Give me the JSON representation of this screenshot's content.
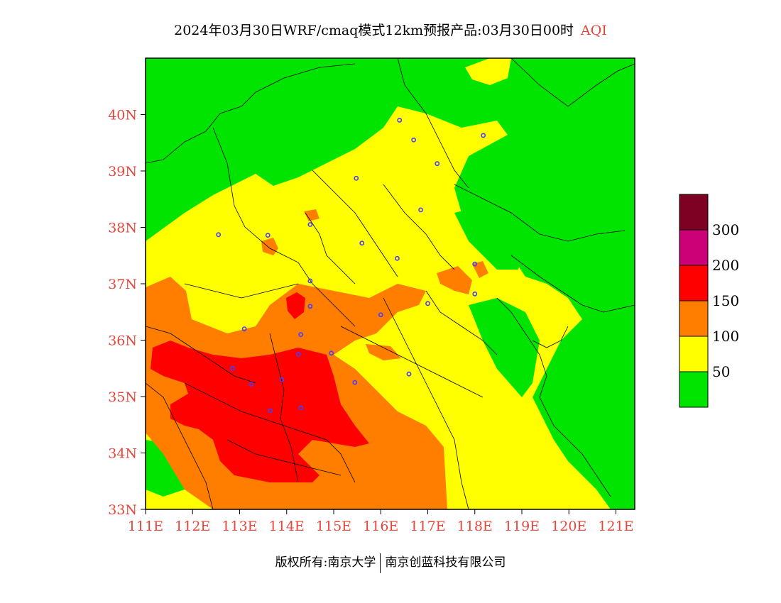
{
  "title": {
    "main": "2024年03月30日WRF/cmaq模式12km预报产品:03月30日00时",
    "variable": "AQI"
  },
  "axes": {
    "lat_labels": [
      "33N",
      "34N",
      "35N",
      "36N",
      "37N",
      "38N",
      "39N",
      "40N"
    ],
    "lat_values": [
      33,
      34,
      35,
      36,
      37,
      38,
      39,
      40
    ],
    "lon_labels": [
      "111E",
      "112E",
      "113E",
      "114E",
      "115E",
      "116E",
      "117E",
      "118E",
      "119E",
      "120E",
      "121E"
    ],
    "lon_values": [
      111,
      112,
      113,
      114,
      115,
      116,
      117,
      118,
      119,
      120,
      121
    ],
    "lon_range": [
      111,
      121.4
    ],
    "lat_range": [
      33,
      41
    ]
  },
  "legend": {
    "labels": [
      "50",
      "100",
      "150",
      "200",
      "300"
    ],
    "colors": [
      "#00e400",
      "#ffff00",
      "#ff7e00",
      "#ff0000",
      "#cc0077",
      "#7e0023"
    ]
  },
  "stations": [
    [
      116.4,
      39.9
    ],
    [
      116.7,
      39.55
    ],
    [
      118.18,
      39.63
    ],
    [
      117.2,
      39.13
    ],
    [
      115.48,
      38.87
    ],
    [
      116.85,
      38.31
    ],
    [
      114.5,
      38.05
    ],
    [
      113.6,
      37.86
    ],
    [
      112.55,
      37.87
    ],
    [
      115.6,
      37.72
    ],
    [
      116.35,
      37.45
    ],
    [
      118.0,
      37.35
    ],
    [
      114.5,
      37.05
    ],
    [
      117.0,
      36.65
    ],
    [
      118.0,
      36.82
    ],
    [
      114.5,
      36.6
    ],
    [
      116.0,
      36.45
    ],
    [
      114.3,
      36.1
    ],
    [
      113.1,
      36.2
    ],
    [
      114.25,
      35.75
    ],
    [
      114.95,
      35.77
    ],
    [
      115.45,
      35.25
    ],
    [
      116.6,
      35.4
    ],
    [
      112.85,
      35.5
    ],
    [
      113.9,
      35.3
    ],
    [
      113.25,
      35.22
    ],
    [
      114.3,
      34.8
    ],
    [
      113.65,
      34.75
    ]
  ],
  "footer": {
    "left": "版权所有:南京大学",
    "right": "南京创蓝科技有限公司"
  }
}
